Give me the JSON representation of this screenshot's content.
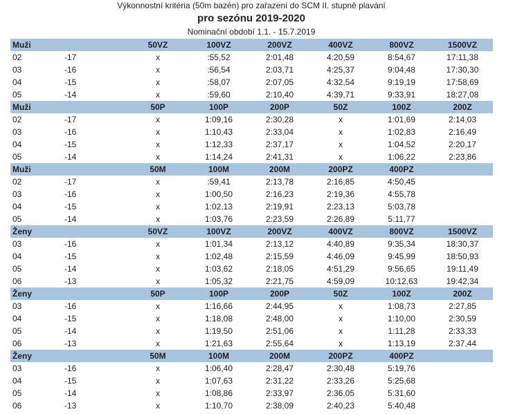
{
  "title": "Výkonnostní kritéria (50m bazén) pro zařazení do SCM II. stupně plavání",
  "season": "pro sezónu 2019-2020",
  "period": "Nominační období 1.1. - 15.7.2019",
  "colors": {
    "header_bg": "#a9c4de"
  },
  "sections": [
    {
      "group": "Muži",
      "columns": [
        "50VZ",
        "100VZ",
        "200VZ",
        "400VZ",
        "800VZ",
        "1500VZ"
      ],
      "rows": [
        {
          "year": "02",
          "age": "-17",
          "values": [
            "x",
            ":55,52",
            "2:01,48",
            "4:20,59",
            "8:54,67",
            "17:11,38"
          ]
        },
        {
          "year": "03",
          "age": "-16",
          "values": [
            "x",
            ":56,54",
            "2:03,71",
            "4:25,37",
            "9:04,48",
            "17:30,30"
          ]
        },
        {
          "year": "04",
          "age": "-15",
          "values": [
            "x",
            ":58,07",
            "2:07,05",
            "4:32,54",
            "9:19,19",
            "17:58,69"
          ]
        },
        {
          "year": "05",
          "age": "-14",
          "values": [
            "x",
            ":59,60",
            "2:10,40",
            "4:39,71",
            "9:33,91",
            "18:27,08"
          ]
        }
      ]
    },
    {
      "group": "Muži",
      "columns": [
        "50P",
        "100P",
        "200P",
        "50Z",
        "100Z",
        "200Z"
      ],
      "rows": [
        {
          "year": "02",
          "age": "-17",
          "values": [
            "x",
            "1:09,16",
            "2:30,28",
            "x",
            "1:01,69",
            "2:14,03"
          ]
        },
        {
          "year": "03",
          "age": "-16",
          "values": [
            "x",
            "1:10,43",
            "2:33,04",
            "x",
            "1:02,83",
            "2:16,49"
          ]
        },
        {
          "year": "04",
          "age": "-15",
          "values": [
            "x",
            "1:12,33",
            "2:37,17",
            "x",
            "1:04,52",
            "2:20,17"
          ]
        },
        {
          "year": "05",
          "age": "-14",
          "values": [
            "x",
            "1:14,24",
            "2:41,31",
            "x",
            "1:06,22",
            "2:23,86"
          ]
        }
      ]
    },
    {
      "group": "Muži",
      "columns": [
        "50M",
        "100M",
        "200M",
        "200PZ",
        "400PZ",
        ""
      ],
      "rows": [
        {
          "year": "02",
          "age": "-17",
          "values": [
            "x",
            ":59,41",
            "2:13,78",
            "2:16,85",
            "4:50,45",
            ""
          ]
        },
        {
          "year": "03",
          "age": "-16",
          "values": [
            "x",
            "1:00,50",
            "2:16,23",
            "2:19,36",
            "4:55,78",
            ""
          ]
        },
        {
          "year": "04",
          "age": "-15",
          "values": [
            "x",
            "1:02,13",
            "2:19,91",
            "2:23,13",
            "5:03,78",
            ""
          ]
        },
        {
          "year": "05",
          "age": "-14",
          "values": [
            "x",
            "1:03,76",
            "2:23,59",
            "2:26,89",
            "5:11,77",
            ""
          ]
        }
      ]
    },
    {
      "group": "Ženy",
      "columns": [
        "50VZ",
        "100VZ",
        "200VZ",
        "400VZ",
        "800VZ",
        "1500VZ"
      ],
      "rows": [
        {
          "year": "03",
          "age": "-16",
          "values": [
            "x",
            "1:01,34",
            "2:13,12",
            "4:40,89",
            "9:35,34",
            "18:30,37"
          ]
        },
        {
          "year": "04",
          "age": "-15",
          "values": [
            "x",
            "1:02,48",
            "2:15,59",
            "4:46,09",
            "9:45,99",
            "18:50,93"
          ]
        },
        {
          "year": "05",
          "age": "-14",
          "values": [
            "x",
            "1:03,62",
            "2:18,05",
            "4:51,29",
            "9:56,65",
            "19:11,49"
          ]
        },
        {
          "year": "06",
          "age": "-13",
          "values": [
            "x",
            "1:05,32",
            "2:21,75",
            "4:59,09",
            "10:12,63",
            "19:42,34"
          ]
        }
      ]
    },
    {
      "group": "Ženy",
      "columns": [
        "50P",
        "100P",
        "200P",
        "50Z",
        "100Z",
        "200Z"
      ],
      "rows": [
        {
          "year": "03",
          "age": "-16",
          "values": [
            "x",
            "1:16,66",
            "2:44,95",
            "x",
            "1:08,73",
            "2:27,85"
          ]
        },
        {
          "year": "04",
          "age": "-15",
          "values": [
            "x",
            "1:18,08",
            "2:48,00",
            "x",
            "1:10,00",
            "2:30,59"
          ]
        },
        {
          "year": "05",
          "age": "-14",
          "values": [
            "x",
            "1:19,50",
            "2:51,06",
            "x",
            "1:11,28",
            "2:33,33"
          ]
        },
        {
          "year": "06",
          "age": "-13",
          "values": [
            "x",
            "1:21,63",
            "2:55,64",
            "x",
            "1:13,19",
            "2:37,44"
          ]
        }
      ]
    },
    {
      "group": "Ženy",
      "columns": [
        "50M",
        "100M",
        "200M",
        "200PZ",
        "400PZ",
        ""
      ],
      "rows": [
        {
          "year": "03",
          "age": "-16",
          "values": [
            "x",
            "1:06,40",
            "2:28,47",
            "2:30,48",
            "5:19,76",
            ""
          ]
        },
        {
          "year": "04",
          "age": "-15",
          "values": [
            "x",
            "1:07,63",
            "2:31,22",
            "2:33,26",
            "5:25,68",
            ""
          ]
        },
        {
          "year": "05",
          "age": "-14",
          "values": [
            "x",
            "1:08,86",
            "2:33,97",
            "2:36,05",
            "5:31,60",
            ""
          ]
        },
        {
          "year": "06",
          "age": "-13",
          "values": [
            "x",
            "1:10,70",
            "2:38,09",
            "2:40,23",
            "5:40,48",
            ""
          ]
        }
      ]
    }
  ]
}
